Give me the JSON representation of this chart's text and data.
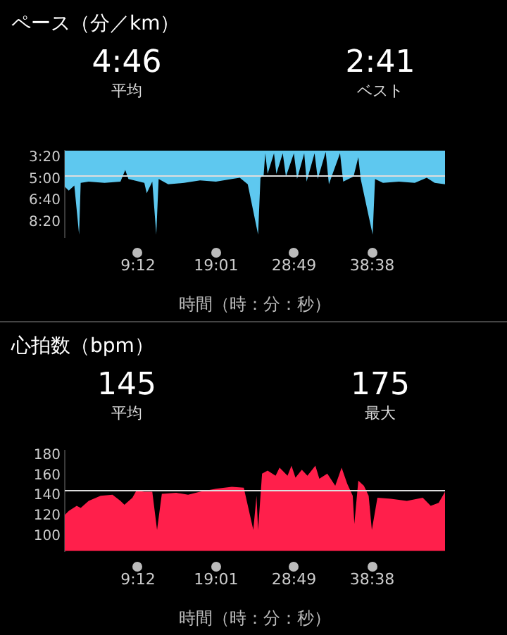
{
  "chart_data": [
    {
      "type": "area",
      "title": "ペース（分／km）",
      "annotations": [
        "4:46",
        "平均",
        "2:41",
        "ベスト"
      ],
      "xlabel": "時間（時：分：秒）",
      "x": [
        0,
        0.5,
        1.2,
        1.8,
        2.0,
        3,
        5,
        7,
        7.6,
        8,
        10,
        10.3,
        11,
        11.5,
        11.8,
        13,
        15,
        17,
        19,
        21,
        22,
        23,
        23.7,
        24.3,
        24.6,
        25,
        25.2,
        25.5,
        26.3,
        26.6,
        27.4,
        27.8,
        28.8,
        29.2,
        30.1,
        30.4,
        31.4,
        31.8,
        32.8,
        33.2,
        34.6,
        35,
        36.3,
        36.9,
        37.2,
        38.7,
        39,
        40,
        42,
        44,
        45.5,
        46.5,
        47.8
      ],
      "series": [
        {
          "color": "#5ec8ef",
          "values": [
            5.6,
            5.9,
            5.5,
            9.3,
            5.3,
            5.2,
            5.3,
            5.2,
            4.3,
            5.0,
            5.3,
            6.1,
            5.2,
            9.3,
            5.0,
            5.4,
            5.3,
            5.1,
            5.2,
            5.0,
            4.9,
            5.4,
            7.5,
            9.3,
            4.9,
            4.7,
            3.0,
            4.6,
            3.0,
            4.6,
            3.0,
            4.8,
            3.0,
            5.0,
            3.0,
            5.2,
            3.0,
            5.0,
            2.9,
            5.4,
            3.0,
            5.2,
            4.8,
            3.3,
            5.0,
            9.3,
            5.0,
            5.3,
            5.2,
            5.3,
            4.9,
            5.3,
            5.4
          ]
        }
      ],
      "xlim": [
        0,
        47.8
      ],
      "xticks": [
        {
          "value": 9.2,
          "label": "9:12"
        },
        {
          "value": 19.017,
          "label": "19:01"
        },
        {
          "value": 28.817,
          "label": "28:49"
        },
        {
          "value": 38.633,
          "label": "38:38"
        }
      ],
      "ylim": [
        9.5,
        2.8
      ],
      "yticks": [
        {
          "value": 3.333,
          "label": "3:20"
        },
        {
          "value": 5,
          "label": "5:00"
        },
        {
          "value": 6.667,
          "label": "6:40"
        },
        {
          "value": 8.333,
          "label": "8:20"
        }
      ],
      "ref_lines": [
        {
          "axis": "y",
          "value": 4.767,
          "color": "#dddddd"
        }
      ],
      "grid": false,
      "legend": false
    },
    {
      "type": "area",
      "title": "心拍数（bpm）",
      "annotations": [
        "145",
        "平均",
        "175",
        "最大"
      ],
      "xlabel": "時間（時：分：秒）",
      "x": [
        0,
        0.5,
        1.5,
        2,
        3,
        4.5,
        6,
        7,
        7.5,
        8.5,
        9,
        10,
        11,
        11.6,
        12.2,
        14,
        15.5,
        17,
        19,
        21,
        22.5,
        23.7,
        24.1,
        24.3,
        24.8,
        25.5,
        26.5,
        27,
        28,
        28.5,
        29,
        29.8,
        30.5,
        31.5,
        32,
        33,
        34,
        34.8,
        35.5,
        36.2,
        36.4,
        36.9,
        37.6,
        38.2,
        38.6,
        39.3,
        41,
        43,
        45,
        46,
        47,
        47.8
      ],
      "series": [
        {
          "color": "#ff1f4b",
          "values": [
            121,
            125,
            130,
            128,
            135,
            140,
            141,
            135,
            131,
            138,
            145,
            144,
            144,
            106,
            142,
            143,
            141,
            144,
            147,
            149,
            148,
            106,
            140,
            106,
            162,
            165,
            160,
            168,
            160,
            170,
            158,
            166,
            160,
            170,
            157,
            162,
            150,
            168,
            152,
            140,
            112,
            155,
            150,
            140,
            106,
            138,
            137,
            135,
            138,
            130,
            133,
            144
          ]
        }
      ],
      "xlim": [
        0,
        47.8
      ],
      "xticks": [
        {
          "value": 9.2,
          "label": "9:12"
        },
        {
          "value": 19.017,
          "label": "19:01"
        },
        {
          "value": 28.817,
          "label": "28:49"
        },
        {
          "value": 38.633,
          "label": "38:38"
        }
      ],
      "ylim": [
        85,
        185
      ],
      "yticks": [
        100,
        120,
        140,
        160,
        180
      ],
      "ref_lines": [
        {
          "axis": "y",
          "value": 145,
          "color": "#dddddd"
        }
      ],
      "grid": false,
      "legend": false
    }
  ]
}
